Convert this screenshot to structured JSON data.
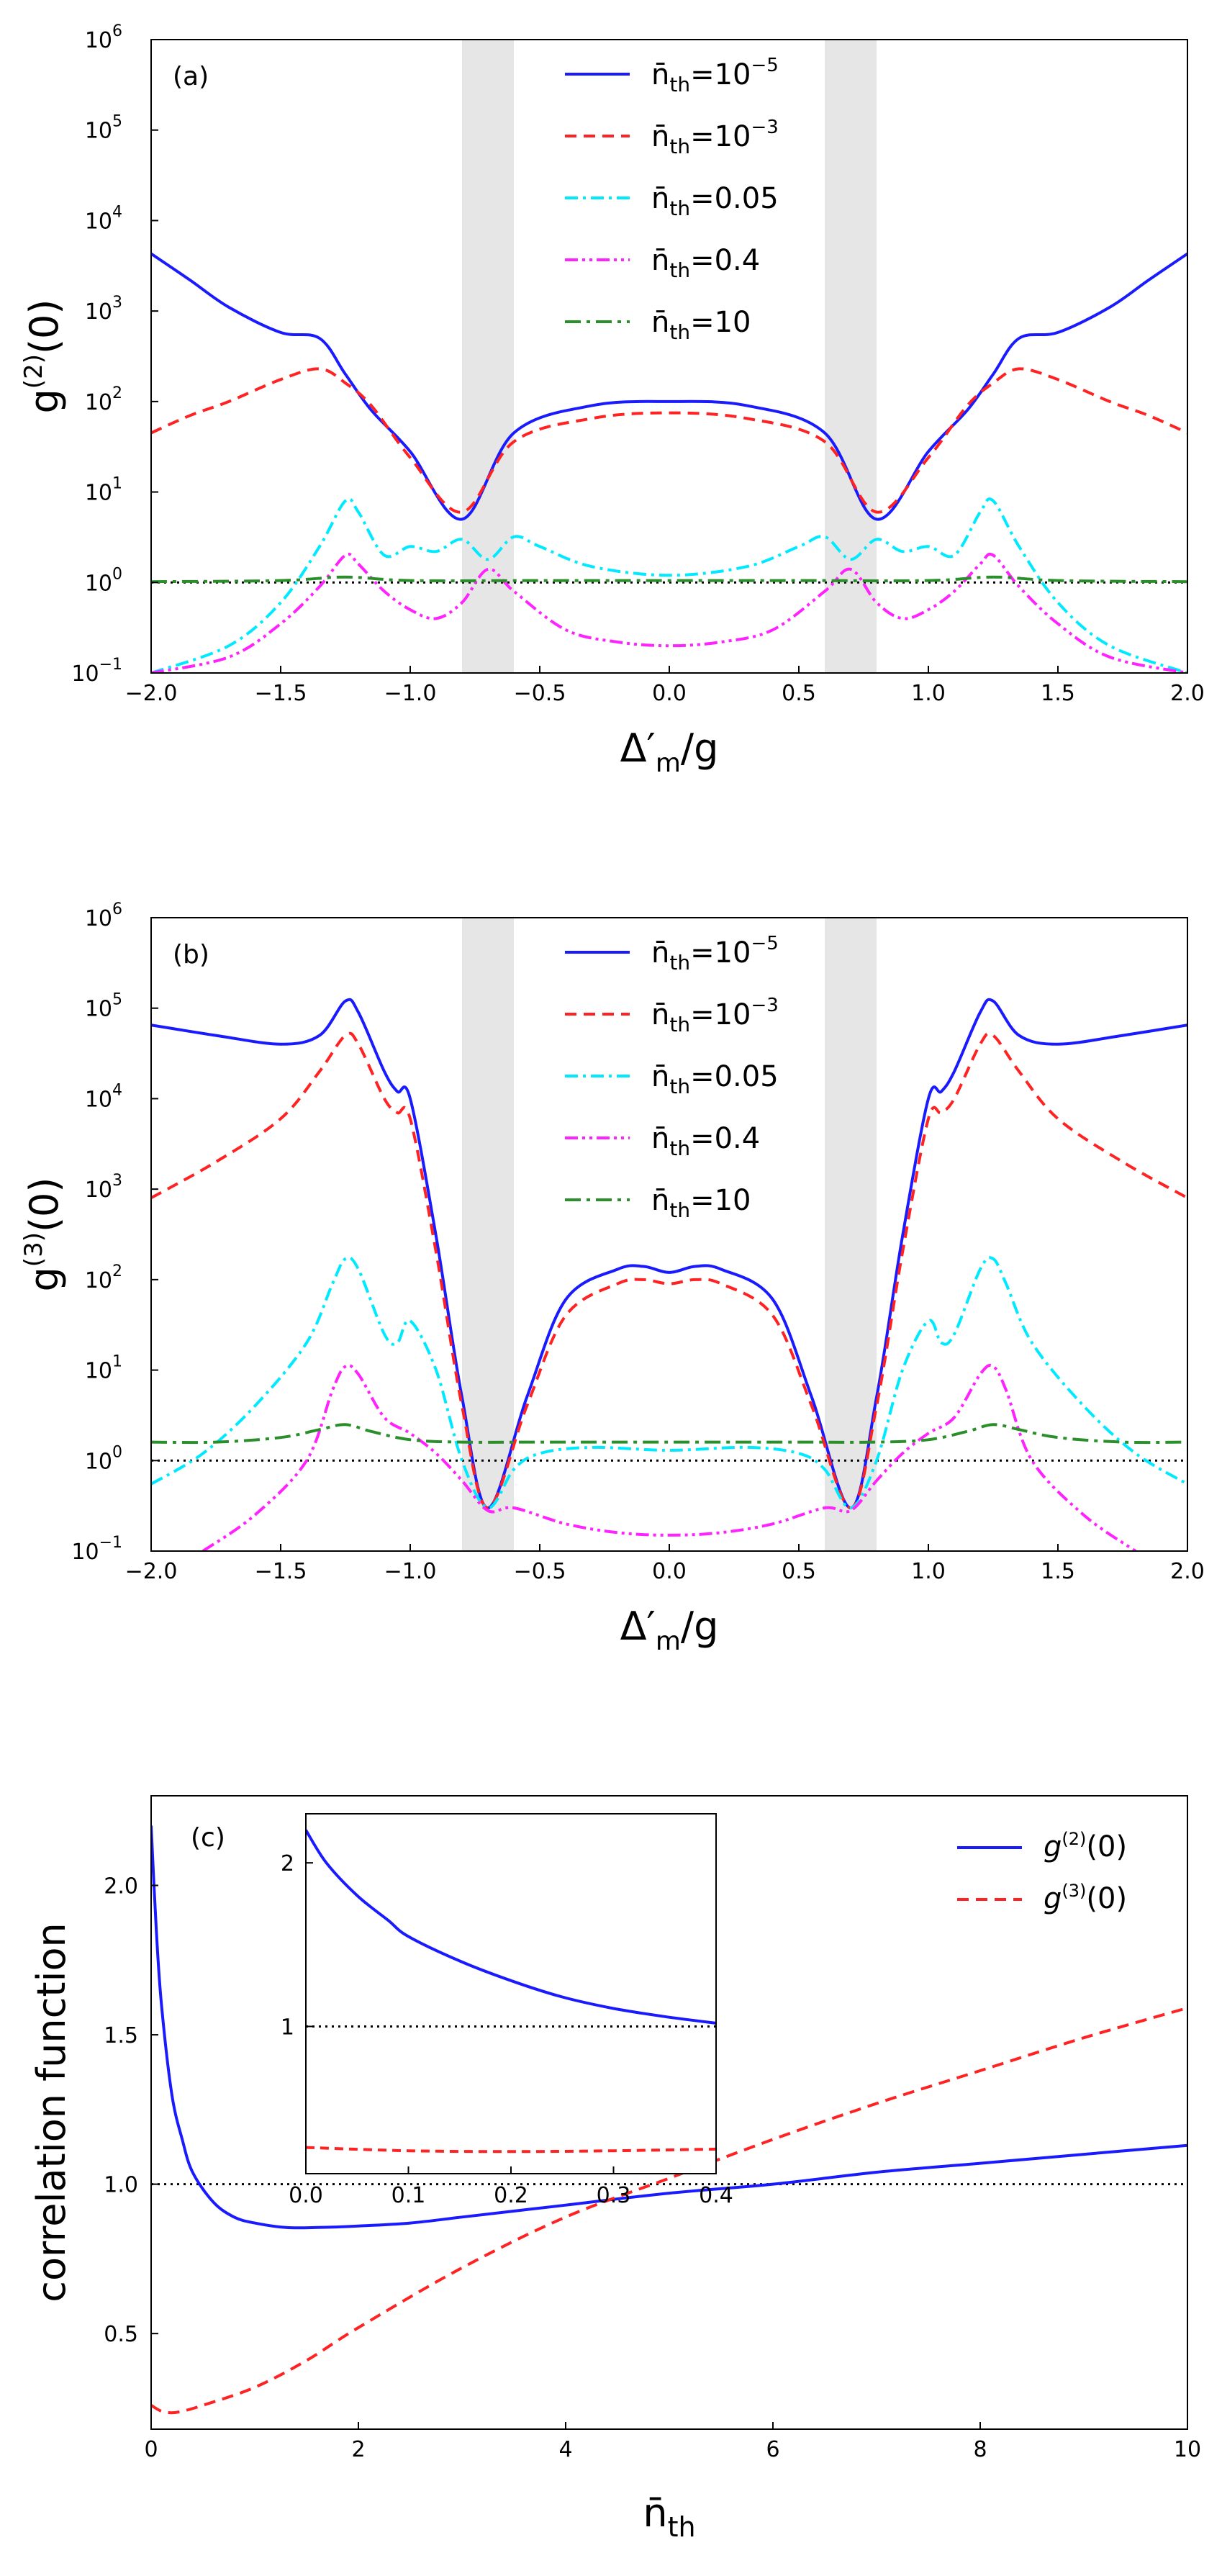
{
  "chart_data": [
    {
      "type": "line",
      "panel": "(a)",
      "ylabel": "g(2)(0)",
      "xlabel": "Δ′m/g",
      "xlim": [
        -2.0,
        2.0
      ],
      "ylim_log10": [
        -1,
        6
      ],
      "yscale": "log",
      "xticks": [
        "−2.0",
        "−1.5",
        "−1.0",
        "−0.5",
        "0.0",
        "0.5",
        "1.0",
        "1.5",
        "2.0"
      ],
      "yticks": [
        "10",
        "10",
        "10",
        "10",
        "10",
        "10",
        "10",
        "10"
      ],
      "yticks_exponents": [
        "−1",
        "0",
        "1",
        "2",
        "3",
        "4",
        "5",
        "6"
      ],
      "shaded_regions": [
        [
          -0.8,
          -0.6
        ],
        [
          0.6,
          0.8
        ]
      ],
      "reference_line": 1,
      "legend_position": "top-center",
      "series": [
        {
          "name": "n̄th=10−5",
          "label_prefix": "n̄",
          "label_sub": "th",
          "label_value": "=10",
          "label_exp": "−5",
          "color": "#1a1aff",
          "dash": "",
          "x": [
            0,
            0.3,
            0.6,
            0.8,
            1.0,
            1.15,
            1.25,
            1.35,
            1.5,
            1.7,
            1.85,
            2.0
          ],
          "y": [
            100,
            90,
            45,
            5,
            28,
            80,
            200,
            500,
            580,
            1100,
            2200,
            4300
          ]
        },
        {
          "name": "n̄th=10−3",
          "label_prefix": "n̄",
          "label_sub": "th",
          "label_value": "=10",
          "label_exp": "−3",
          "color": "#ff2222",
          "dash": "16,10",
          "x": [
            0,
            0.3,
            0.6,
            0.8,
            1.0,
            1.15,
            1.25,
            1.35,
            1.5,
            1.7,
            1.85,
            2.0
          ],
          "y": [
            75,
            65,
            36,
            6,
            24,
            90,
            160,
            230,
            175,
            100,
            70,
            45
          ]
        },
        {
          "name": "n̄th=0.05",
          "label_prefix": "n̄",
          "label_sub": "th",
          "label_value": "=0.05",
          "label_exp": "",
          "color": "#00eaff",
          "dash": "18,7,4,7",
          "x": [
            0,
            0.3,
            0.5,
            0.6,
            0.7,
            0.8,
            0.9,
            1.0,
            1.1,
            1.2,
            1.25,
            1.35,
            1.5,
            1.7,
            2.0
          ],
          "y": [
            1.2,
            1.5,
            2.5,
            3.2,
            1.8,
            3.0,
            2.2,
            2.5,
            2.0,
            6.0,
            8.0,
            2.5,
            0.6,
            0.2,
            0.1
          ]
        },
        {
          "name": "n̄th=0.4",
          "label_prefix": "n̄",
          "label_sub": "th",
          "label_value": "=0.4",
          "label_exp": "",
          "color": "#ff22ff",
          "dash": "18,6,4,6,4,6",
          "x": [
            0,
            0.2,
            0.4,
            0.6,
            0.7,
            0.8,
            0.9,
            1.0,
            1.1,
            1.2,
            1.25,
            1.35,
            1.5,
            1.7,
            2.0
          ],
          "y": [
            0.2,
            0.22,
            0.3,
            0.8,
            1.4,
            0.6,
            0.4,
            0.5,
            0.8,
            1.6,
            2.0,
            0.9,
            0.35,
            0.15,
            0.1
          ]
        },
        {
          "name": "n̄th=10",
          "label_prefix": "n̄",
          "label_sub": "th",
          "label_value": "=10",
          "label_exp": "",
          "color": "#2a8f2a",
          "dash": "22,8,5,8",
          "x": [
            0,
            0.5,
            1.0,
            1.25,
            1.5,
            2.0
          ],
          "y": [
            1.05,
            1.05,
            1.05,
            1.15,
            1.05,
            1.02
          ]
        }
      ]
    },
    {
      "type": "line",
      "panel": "(b)",
      "ylabel": "g(3)(0)",
      "xlabel": "Δ′m/g",
      "xlim": [
        -2.0,
        2.0
      ],
      "ylim_log10": [
        -1,
        6
      ],
      "yscale": "log",
      "xticks": [
        "−2.0",
        "−1.5",
        "−1.0",
        "−0.5",
        "0.0",
        "0.5",
        "1.0",
        "1.5",
        "2.0"
      ],
      "yticks": [
        "10",
        "10",
        "10",
        "10",
        "10",
        "10",
        "10",
        "10"
      ],
      "yticks_exponents": [
        "−1",
        "0",
        "1",
        "2",
        "3",
        "4",
        "5",
        "6"
      ],
      "shaded_regions": [
        [
          -0.8,
          -0.6
        ],
        [
          0.6,
          0.8
        ]
      ],
      "reference_line": 1,
      "legend_position": "top-center",
      "series": [
        {
          "name": "n̄th=10−5",
          "label_prefix": "n̄",
          "label_sub": "th",
          "label_value": "=10",
          "label_exp": "−5",
          "color": "#1a1aff",
          "dash": "",
          "x": [
            0,
            0.1,
            0.2,
            0.4,
            0.55,
            0.7,
            0.8,
            0.9,
            1.0,
            1.05,
            1.1,
            1.2,
            1.25,
            1.35,
            1.5,
            1.75,
            2.0
          ],
          "y": [
            120,
            140,
            130,
            60,
            5,
            0.3,
            5,
            300,
            10000,
            12000,
            20000,
            90000,
            120000,
            50000,
            40000,
            50000,
            65000
          ]
        },
        {
          "name": "n̄th=10−3",
          "label_prefix": "n̄",
          "label_sub": "th",
          "label_value": "=10",
          "label_exp": "−3",
          "color": "#ff2222",
          "dash": "16,10",
          "x": [
            0,
            0.1,
            0.2,
            0.4,
            0.55,
            0.7,
            0.8,
            0.9,
            1.0,
            1.05,
            1.1,
            1.2,
            1.25,
            1.35,
            1.5,
            1.75,
            2.0
          ],
          "y": [
            90,
            100,
            90,
            40,
            4,
            0.3,
            4,
            200,
            6000,
            7000,
            10000,
            40000,
            50000,
            20000,
            6000,
            2000,
            800
          ]
        },
        {
          "name": "n̄th=0.05",
          "label_prefix": "n̄",
          "label_sub": "th",
          "label_value": "=0.05",
          "label_exp": "",
          "color": "#00eaff",
          "dash": "18,7,4,7",
          "x": [
            0,
            0.3,
            0.5,
            0.6,
            0.7,
            0.8,
            0.9,
            1.0,
            1.05,
            1.1,
            1.2,
            1.25,
            1.3,
            1.4,
            1.6,
            1.8,
            2.0
          ],
          "y": [
            1.3,
            1.4,
            1.2,
            0.8,
            0.3,
            1.0,
            10,
            35,
            20,
            25,
            130,
            170,
            90,
            20,
            4,
            1.2,
            0.55
          ]
        },
        {
          "name": "n̄th=0.4",
          "label_prefix": "n̄",
          "label_sub": "th",
          "label_value": "=0.4",
          "label_exp": "",
          "color": "#ff22ff",
          "dash": "18,6,4,6,4,6",
          "x": [
            0,
            0.2,
            0.4,
            0.6,
            0.7,
            0.8,
            0.9,
            1.0,
            1.1,
            1.2,
            1.25,
            1.3,
            1.4,
            1.6,
            1.8
          ],
          "y": [
            0.15,
            0.16,
            0.2,
            0.3,
            0.28,
            0.6,
            1.2,
            2.0,
            3.0,
            9.0,
            11.0,
            6.0,
            1.0,
            0.25,
            0.1
          ]
        },
        {
          "name": "n̄th=10",
          "label_prefix": "n̄",
          "label_sub": "th",
          "label_value": "=10",
          "label_exp": "",
          "color": "#2a8f2a",
          "dash": "22,8,5,8",
          "x": [
            0,
            0.5,
            0.8,
            1.0,
            1.15,
            1.25,
            1.35,
            1.5,
            1.75,
            2.0
          ],
          "y": [
            1.6,
            1.6,
            1.6,
            1.7,
            2.1,
            2.5,
            2.2,
            1.8,
            1.6,
            1.6
          ]
        }
      ]
    },
    {
      "type": "line",
      "panel": "(c)",
      "ylabel": "correlation function",
      "xlabel": "n̄th",
      "xlabel_main": "n̄",
      "xlabel_sub": "th",
      "xlim": [
        0,
        10
      ],
      "ylim": [
        0.18,
        2.3
      ],
      "xticks": [
        "0",
        "2",
        "4",
        "6",
        "8",
        "10"
      ],
      "xtick_values": [
        0,
        2,
        4,
        6,
        8,
        10
      ],
      "yticks": [
        "0.5",
        "1.0",
        "1.5",
        "2.0"
      ],
      "ytick_values": [
        0.5,
        1.0,
        1.5,
        2.0
      ],
      "reference_line": 1,
      "legend_position": "top-right",
      "series": [
        {
          "name": "g(2)(0)",
          "label_main": "g",
          "label_sup": "(2)",
          "label_rest": "(0)",
          "color": "#1a1aff",
          "dash": "",
          "x": [
            0,
            0.05,
            0.1,
            0.2,
            0.3,
            0.4,
            0.6,
            0.8,
            1.0,
            1.3,
            1.6,
            2,
            2.5,
            3,
            3.5,
            4,
            5,
            6,
            7,
            8,
            9,
            10
          ],
          "y": [
            2.2,
            1.85,
            1.6,
            1.3,
            1.15,
            1.04,
            0.94,
            0.89,
            0.87,
            0.855,
            0.855,
            0.86,
            0.87,
            0.89,
            0.91,
            0.93,
            0.97,
            1.0,
            1.04,
            1.07,
            1.1,
            1.13
          ]
        },
        {
          "name": "g(3)(0)",
          "label_main": "g",
          "label_sup": "(3)",
          "label_rest": "(0)",
          "color": "#ff2222",
          "dash": "16,10",
          "x": [
            0,
            0.1,
            0.2,
            0.3,
            0.5,
            1,
            1.5,
            2,
            3,
            4,
            5,
            6,
            7,
            8,
            9,
            10
          ],
          "y": [
            0.26,
            0.24,
            0.235,
            0.24,
            0.26,
            0.32,
            0.41,
            0.52,
            0.72,
            0.89,
            1.02,
            1.15,
            1.27,
            1.38,
            1.49,
            1.59
          ]
        }
      ],
      "inset": {
        "xlim": [
          0.0,
          0.4
        ],
        "ylim": [
          0.1,
          2.3
        ],
        "xticks": [
          "0.0",
          "0.1",
          "0.2",
          "0.3",
          "0.4"
        ],
        "xtick_values": [
          0.0,
          0.1,
          0.2,
          0.3,
          0.4
        ],
        "yticks": [
          "1",
          "2"
        ],
        "ytick_values": [
          1,
          2
        ],
        "reference_line": 1,
        "series": [
          {
            "name": "g(2)(0)",
            "color": "#1a1aff",
            "dash": "",
            "x": [
              0,
              0.02,
              0.05,
              0.08,
              0.1,
              0.15,
              0.2,
              0.25,
              0.3,
              0.35,
              0.4
            ],
            "y": [
              2.2,
              2.0,
              1.8,
              1.65,
              1.55,
              1.4,
              1.28,
              1.18,
              1.11,
              1.06,
              1.02
            ]
          },
          {
            "name": "g(3)(0)",
            "color": "#ff2222",
            "dash": "12,8",
            "x": [
              0,
              0.1,
              0.2,
              0.3,
              0.4
            ],
            "y": [
              0.26,
              0.24,
              0.235,
              0.24,
              0.25
            ]
          }
        ]
      }
    }
  ]
}
